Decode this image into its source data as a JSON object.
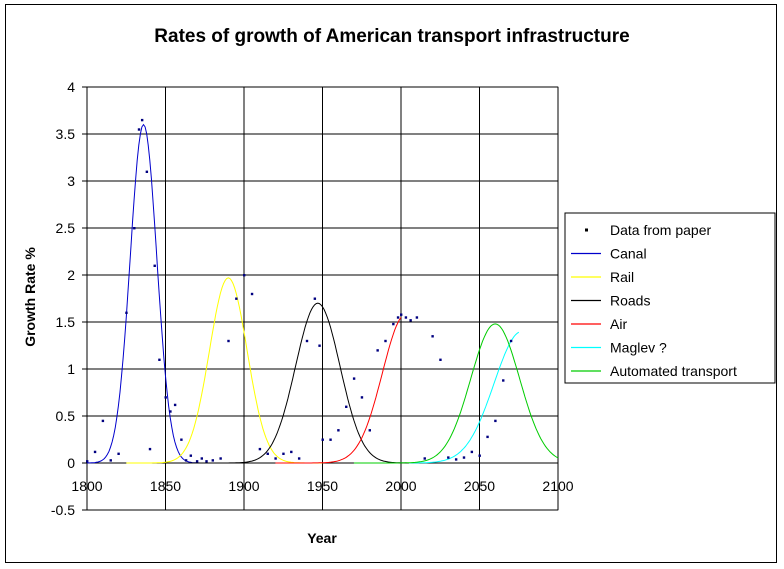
{
  "chart_data": {
    "type": "line",
    "title": "Rates of growth of American transport infrastructure",
    "xlabel": "Year",
    "ylabel": "Growth Rate %",
    "xlim": [
      1800,
      2100
    ],
    "ylim": [
      -0.5,
      4
    ],
    "x_ticks": [
      "1800",
      "1850",
      "1900",
      "1950",
      "2000",
      "2050",
      "2100"
    ],
    "y_ticks": [
      "-0.5",
      "0",
      "0.5",
      "1",
      "1.5",
      "2",
      "2.5",
      "3",
      "3.5",
      "4"
    ],
    "grid": true,
    "legend_position": "right",
    "series": [
      {
        "name": "Data from paper",
        "style": "points",
        "color": "#000080",
        "x": [
          1800,
          1805,
          1810,
          1815,
          1820,
          1825,
          1830,
          1833,
          1835,
          1838,
          1840,
          1843,
          1846,
          1850,
          1853,
          1856,
          1860,
          1863,
          1866,
          1870,
          1873,
          1876,
          1880,
          1885,
          1890,
          1895,
          1900,
          1905,
          1910,
          1915,
          1920,
          1925,
          1930,
          1935,
          1940,
          1945,
          1948,
          1950,
          1955,
          1960,
          1965,
          1970,
          1975,
          1980,
          1985,
          1990,
          1995,
          1998,
          2000,
          2003,
          2006,
          2010,
          2015,
          2020,
          2025,
          2030,
          2035,
          2040,
          2045,
          2050,
          2055,
          2060,
          2065,
          2070
        ],
        "y": [
          0.02,
          0.12,
          0.45,
          0.03,
          0.1,
          1.6,
          2.5,
          3.55,
          3.65,
          3.1,
          0.15,
          2.1,
          1.1,
          0.7,
          0.55,
          0.62,
          0.25,
          0.03,
          0.08,
          0.02,
          0.05,
          0.02,
          0.03,
          0.05,
          1.3,
          1.75,
          2.0,
          1.8,
          0.15,
          0.1,
          0.05,
          0.1,
          0.12,
          0.05,
          1.3,
          1.75,
          1.25,
          0.25,
          0.25,
          0.35,
          0.6,
          0.9,
          0.7,
          0.35,
          1.2,
          1.3,
          1.48,
          1.55,
          1.58,
          1.55,
          1.52,
          1.55,
          0.05,
          1.35,
          1.1,
          0.06,
          0.04,
          0.06,
          0.12,
          0.08,
          0.28,
          0.45,
          0.88,
          1.3
        ]
      },
      {
        "name": "Canal",
        "style": "line",
        "color": "#0000cc",
        "peak_year": 1836,
        "peak_value": 3.6,
        "width": 12,
        "from": 1800,
        "to": 1880
      },
      {
        "name": "Rail",
        "style": "line",
        "color": "#ffff00",
        "peak_year": 1890,
        "peak_value": 1.97,
        "width": 17,
        "from": 1825,
        "to": 1950
      },
      {
        "name": "Roads",
        "style": "line",
        "color": "#000000",
        "peak_year": 1947,
        "peak_value": 1.7,
        "width": 20,
        "from": 1865,
        "to": 2005
      },
      {
        "name": "Air",
        "style": "line",
        "color": "#ff0000",
        "peak_year": 2003,
        "peak_value": 1.58,
        "width": 21,
        "from": 1920,
        "to": 2000
      },
      {
        "name": "Maglev ?",
        "style": "line",
        "color": "#00ffff",
        "peak_year": 2077,
        "peak_value": 1.4,
        "width": 25,
        "from": 2005,
        "to": 2075
      },
      {
        "name": "Automated transport",
        "style": "line",
        "color": "#00cc00",
        "peak_year": 2060,
        "peak_value": 1.48,
        "width": 22,
        "from": 1970,
        "to": 2100
      }
    ]
  }
}
